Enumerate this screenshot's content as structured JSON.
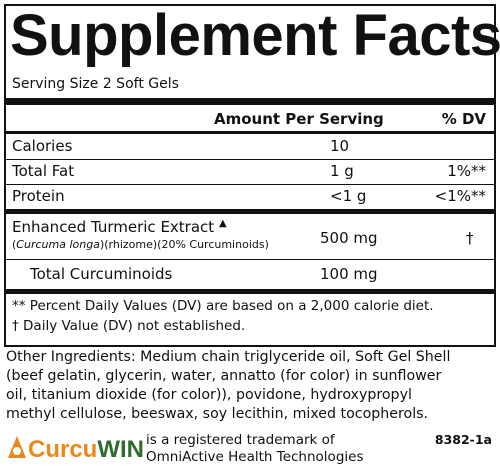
{
  "header": {
    "title": "Supplement Facts",
    "serving_size": "Serving Size 2 Soft Gels"
  },
  "table": {
    "columns": [
      "Amount Per Serving",
      "% DV"
    ],
    "rows": [
      [
        "Calories",
        "10",
        ""
      ],
      [
        "Total Fat",
        "1 g",
        "1%**"
      ],
      [
        "Protein",
        "<1 g",
        "<1%**"
      ]
    ],
    "extract": {
      "name": "Enhanced Turmeric Extract",
      "marker": "▲",
      "sub": [
        "(",
        "Curcuma longa",
        ")(rhizome)(20% Curcuminoids)"
      ],
      "amount": "500 mg",
      "dv": "†"
    },
    "sub_row": {
      "name": "Total Curcuminoids",
      "amount": "100 mg"
    }
  },
  "footnotes": [
    "** Percent Daily Values (DV) are based on a 2,000 calorie diet.",
    "† Daily Value (DV) not established."
  ],
  "ingredients": [
    "Other Ingredients: Medium chain triglyceride oil, Soft Gel Shell",
    "(beef gelatin, glycerin, water, annatto (for color) in sunflower",
    "oil, titanium dioxide (for color)), povidone, hydroxypropyl",
    "methyl cellulose, beeswax, soy lecithin, mixed tocopherols."
  ],
  "logo": {
    "part1": "Curcu",
    "part2": "WIN"
  },
  "trademark": [
    "is a registered trademark of",
    "OmniActive Health Technologies"
  ],
  "code": "8382-1a"
}
